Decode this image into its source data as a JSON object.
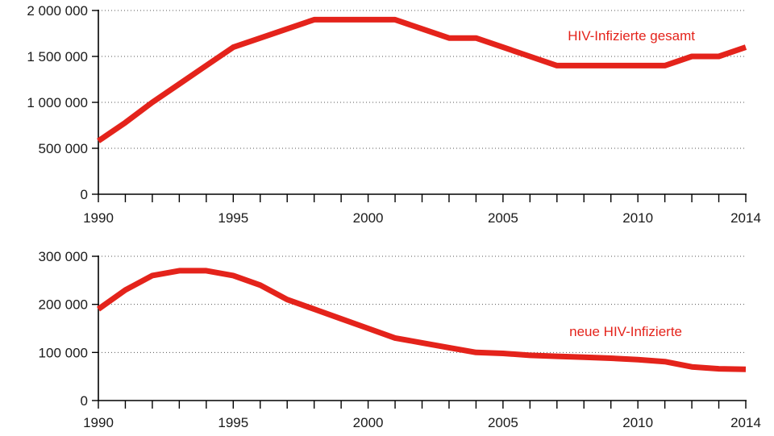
{
  "chart_data": [
    {
      "type": "line",
      "title": "",
      "xlabel": "",
      "ylabel": "",
      "xlim": [
        1990,
        2014
      ],
      "ylim": [
        0,
        2000000
      ],
      "grid": "horizontal dotted",
      "x_tick_labels": [
        {
          "value": 1990,
          "label": "1990"
        },
        {
          "value": 1995,
          "label": "1995"
        },
        {
          "value": 2000,
          "label": "2000"
        },
        {
          "value": 2005,
          "label": "2005"
        },
        {
          "value": 2010,
          "label": "2010"
        },
        {
          "value": 2014,
          "label": "2014"
        }
      ],
      "y_tick_labels": [
        {
          "value": 0,
          "label": "0"
        },
        {
          "value": 500000,
          "label": "500 000"
        },
        {
          "value": 1000000,
          "label": "1 000 000"
        },
        {
          "value": 1500000,
          "label": "1 500 000"
        },
        {
          "value": 2000000,
          "label": "2 000 000"
        }
      ],
      "series": [
        {
          "name": "HIV-Infizierte gesamt",
          "color": "#e4231b",
          "x": [
            1990,
            1991,
            1992,
            1993,
            1994,
            1995,
            1996,
            1997,
            1998,
            1999,
            2000,
            2001,
            2002,
            2003,
            2004,
            2005,
            2006,
            2007,
            2008,
            2009,
            2010,
            2011,
            2012,
            2013,
            2014
          ],
          "values": [
            580000,
            780000,
            1000000,
            1200000,
            1400000,
            1600000,
            1700000,
            1800000,
            1900000,
            1900000,
            1900000,
            1900000,
            1800000,
            1700000,
            1700000,
            1600000,
            1500000,
            1400000,
            1400000,
            1400000,
            1400000,
            1400000,
            1500000,
            1500000,
            1600000
          ]
        }
      ]
    },
    {
      "type": "line",
      "title": "",
      "xlabel": "",
      "ylabel": "",
      "xlim": [
        1990,
        2014
      ],
      "ylim": [
        0,
        300000
      ],
      "grid": "horizontal dotted",
      "x_tick_labels": [
        {
          "value": 1990,
          "label": "1990"
        },
        {
          "value": 1995,
          "label": "1995"
        },
        {
          "value": 2000,
          "label": "2000"
        },
        {
          "value": 2005,
          "label": "2005"
        },
        {
          "value": 2010,
          "label": "2010"
        },
        {
          "value": 2014,
          "label": "2014"
        }
      ],
      "y_tick_labels": [
        {
          "value": 0,
          "label": "0"
        },
        {
          "value": 100000,
          "label": "100 000"
        },
        {
          "value": 200000,
          "label": "200 000"
        },
        {
          "value": 300000,
          "label": "300 000"
        }
      ],
      "series": [
        {
          "name": "neue HIV-Infizierte",
          "color": "#e4231b",
          "x": [
            1990,
            1991,
            1992,
            1993,
            1994,
            1995,
            1996,
            1997,
            1998,
            1999,
            2000,
            2001,
            2002,
            2003,
            2004,
            2005,
            2006,
            2007,
            2008,
            2009,
            2010,
            2011,
            2012,
            2013,
            2014
          ],
          "values": [
            190000,
            230000,
            260000,
            270000,
            270000,
            260000,
            240000,
            210000,
            190000,
            170000,
            150000,
            130000,
            120000,
            110000,
            100000,
            98000,
            94000,
            92000,
            90000,
            88000,
            85000,
            81000,
            70000,
            66000,
            65000
          ]
        }
      ]
    }
  ]
}
